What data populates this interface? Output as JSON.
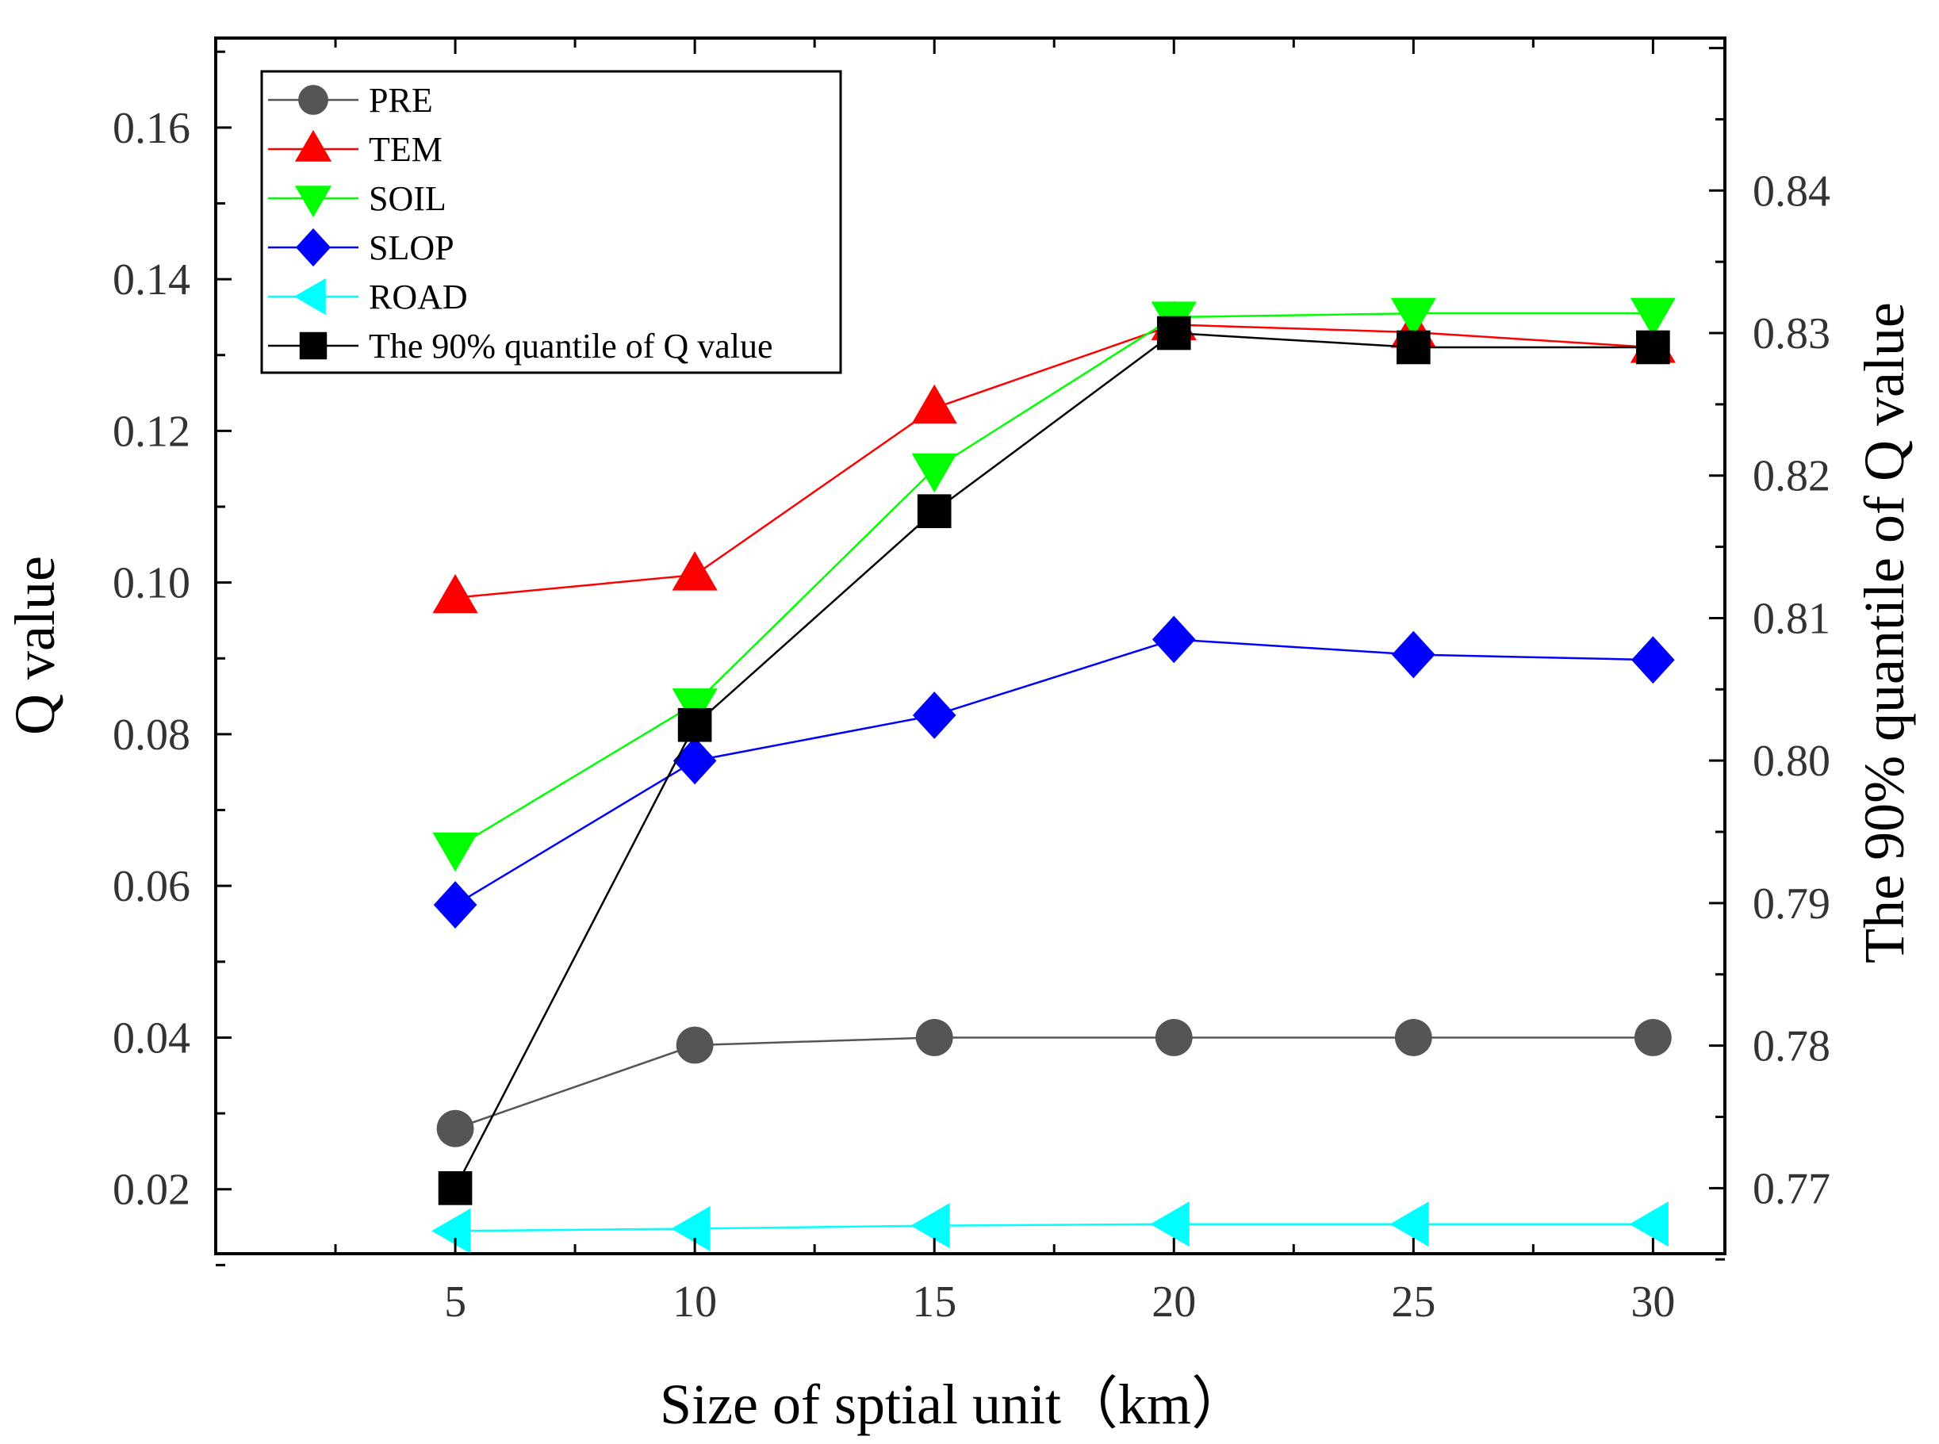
{
  "chart_data": {
    "type": "line",
    "title": "",
    "x": [
      5,
      10,
      15,
      20,
      25,
      30
    ],
    "xlabel": "Size of sptial unit（km）",
    "ylabel": "Q value",
    "y2label": "The 90% quantile of Q value",
    "xlim": [
      0,
      31.5
    ],
    "ylim": [
      0.0115,
      0.1718
    ],
    "y2lim": [
      0.7654,
      0.8507
    ],
    "xticks": [
      "5",
      "10",
      "15",
      "20",
      "25",
      "30"
    ],
    "yticks": [
      "0.02",
      "0.04",
      "0.06",
      "0.08",
      "0.10",
      "0.12",
      "0.14",
      "0.16"
    ],
    "y2ticks": [
      "0.77",
      "0.78",
      "0.79",
      "0.80",
      "0.81",
      "0.82",
      "0.83",
      "0.84"
    ],
    "legend_position": "top-left",
    "series": [
      {
        "name": "PRE",
        "axis": "left",
        "marker": "circle",
        "color": "#555555",
        "values": [
          0.028,
          0.039,
          0.04,
          0.04,
          0.04,
          0.04
        ]
      },
      {
        "name": "TEM",
        "axis": "left",
        "marker": "triangle-up",
        "color": "#ff0000",
        "values": [
          0.098,
          0.101,
          0.123,
          0.134,
          0.133,
          0.131
        ]
      },
      {
        "name": "SOIL",
        "axis": "left",
        "marker": "triangle-down",
        "color": "#00ff00",
        "values": [
          0.065,
          0.084,
          0.115,
          0.135,
          0.1355,
          0.1355
        ]
      },
      {
        "name": "SLOP",
        "axis": "left",
        "marker": "diamond",
        "color": "#0000ff",
        "values": [
          0.0575,
          0.0765,
          0.0825,
          0.0925,
          0.0905,
          0.0898
        ]
      },
      {
        "name": "ROAD",
        "axis": "left",
        "marker": "triangle-left",
        "color": "#00ffff",
        "values": [
          0.0145,
          0.0148,
          0.0152,
          0.0154,
          0.0154,
          0.0154
        ]
      },
      {
        "name": "The 90% quantile of Q value",
        "axis": "right",
        "marker": "square",
        "color": "#000000",
        "values": [
          0.77,
          0.8025,
          0.8175,
          0.83,
          0.829,
          0.829
        ]
      }
    ]
  }
}
